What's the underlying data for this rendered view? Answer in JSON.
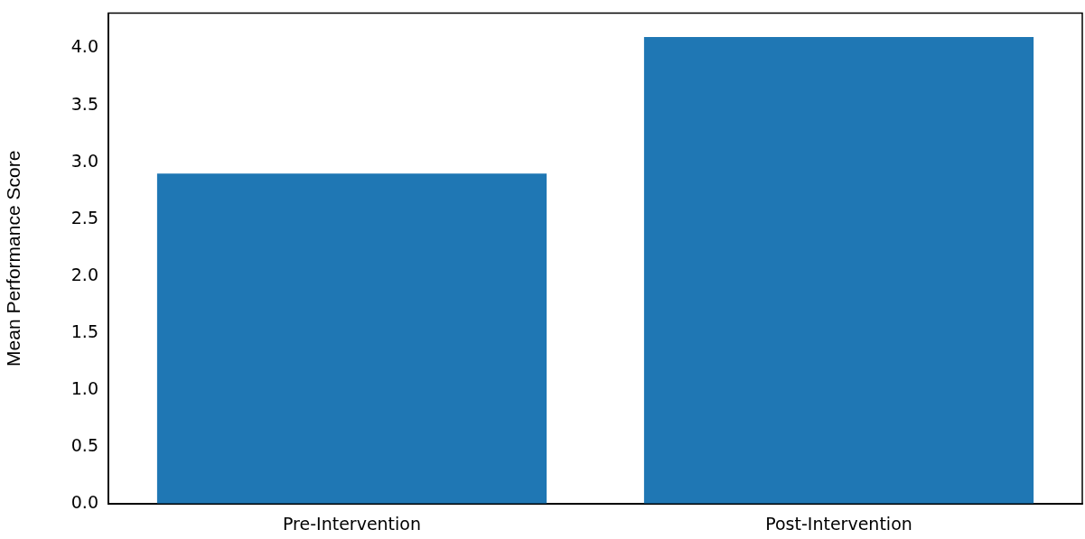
{
  "chart_data": {
    "type": "bar",
    "ylabel": "Mean Performance Score",
    "categories": [
      "Pre-Intervention",
      "Post-Intervention"
    ],
    "values": [
      2.9,
      4.1
    ],
    "color": "#1f77b4",
    "ylim": [
      0,
      4.31
    ],
    "yticks": [
      {
        "value": 0,
        "label": "0.0"
      },
      {
        "value": 0.5,
        "label": "0.5"
      },
      {
        "value": 1,
        "label": "1.0"
      },
      {
        "value": 1.5,
        "label": "1.5"
      },
      {
        "value": 2,
        "label": "2.0"
      },
      {
        "value": 2.5,
        "label": "2.5"
      },
      {
        "value": 3,
        "label": "3.0"
      },
      {
        "value": 3.5,
        "label": "3.5"
      },
      {
        "value": 4,
        "label": "4.0"
      }
    ],
    "grid": false,
    "legend": false
  }
}
